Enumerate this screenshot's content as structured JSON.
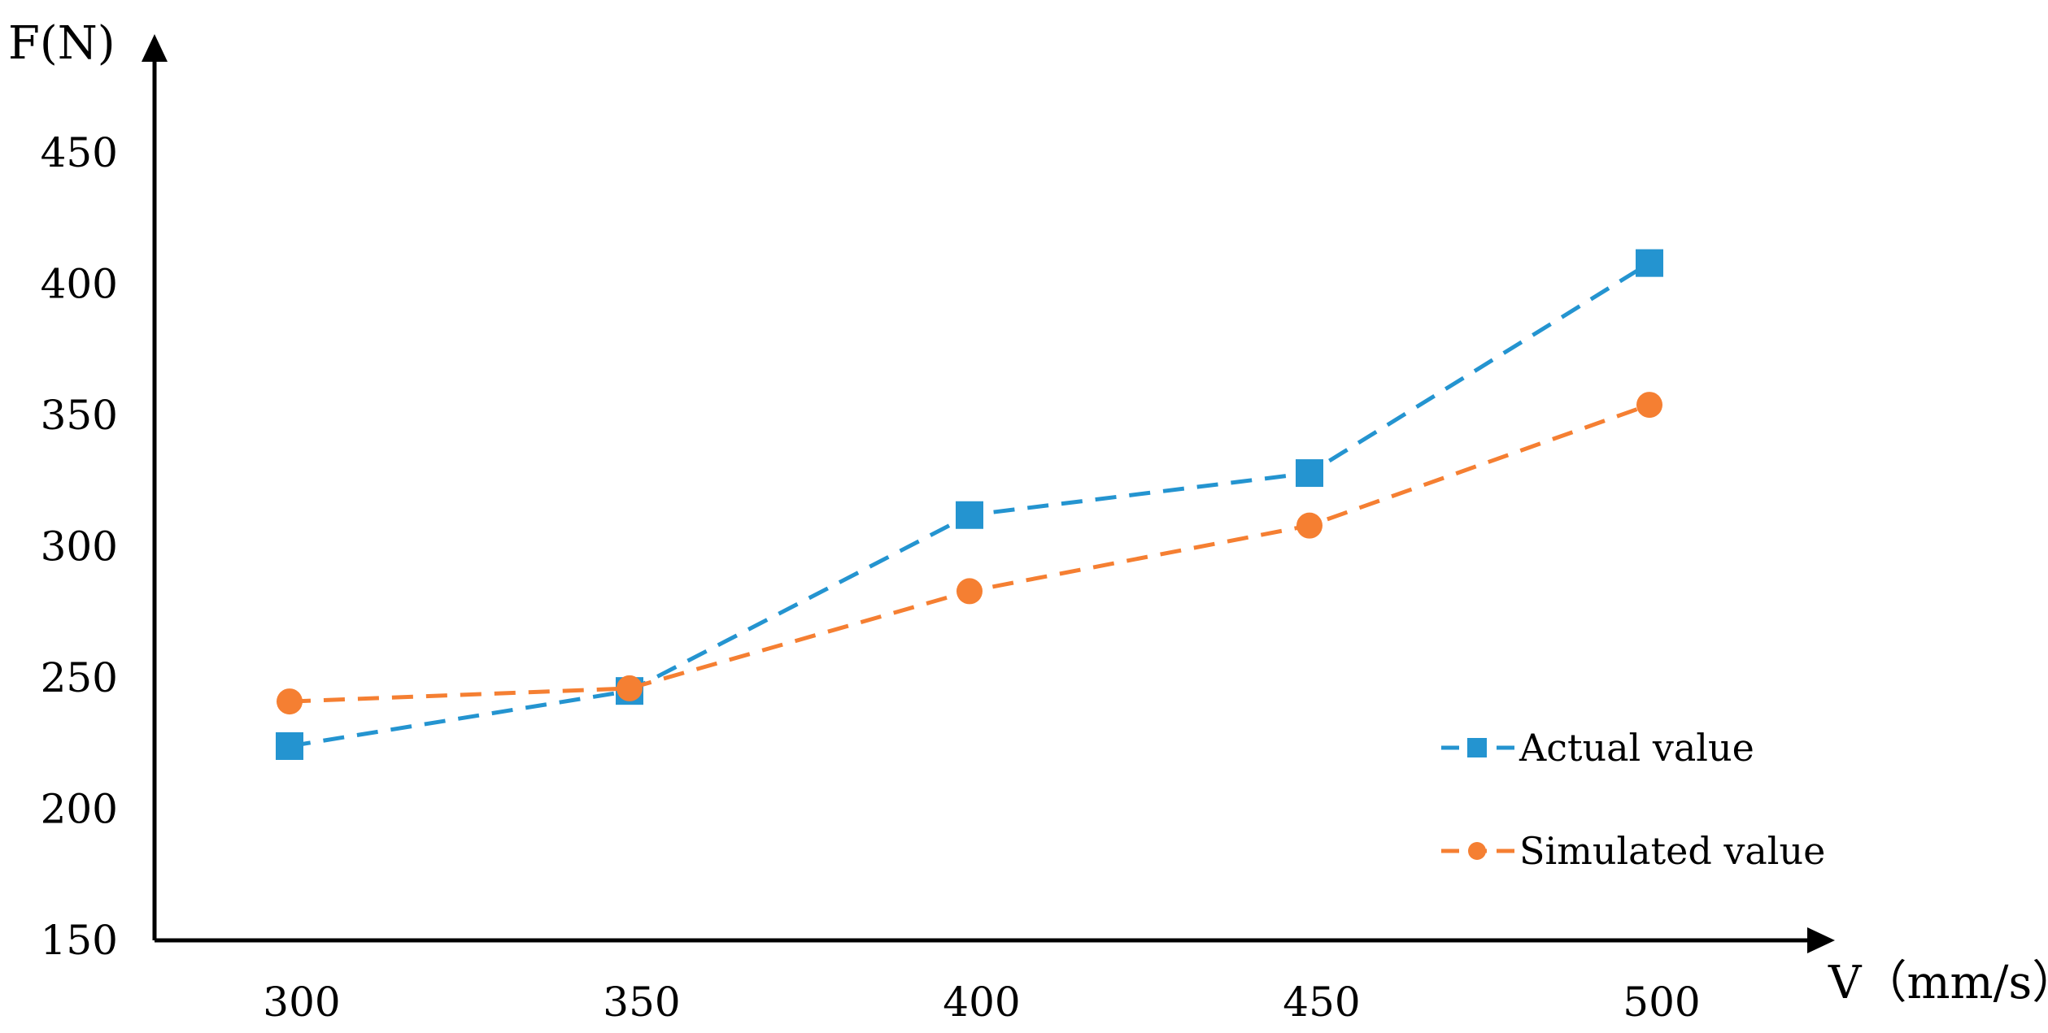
{
  "chart_data": {
    "type": "line",
    "x": [
      300,
      350,
      400,
      450,
      500
    ],
    "series": [
      {
        "name": "Actual value",
        "values": [
          224,
          245,
          312,
          328,
          408
        ],
        "color": "#2494D0",
        "marker": "square",
        "line_style": "dashed"
      },
      {
        "name": "Simulated value",
        "values": [
          241,
          246,
          283,
          308,
          354
        ],
        "color": "#F57F32",
        "marker": "circle",
        "line_style": "dashed"
      }
    ],
    "xlabel": "V（mm/s）",
    "ylabel": "F(N)",
    "x_ticks": [
      300,
      350,
      400,
      450,
      500
    ],
    "y_ticks": [
      150,
      200,
      250,
      300,
      350,
      400,
      450
    ],
    "ylim": [
      150,
      450
    ],
    "grid": false,
    "legend_position": "bottom-right",
    "axis_color": "#000000"
  }
}
